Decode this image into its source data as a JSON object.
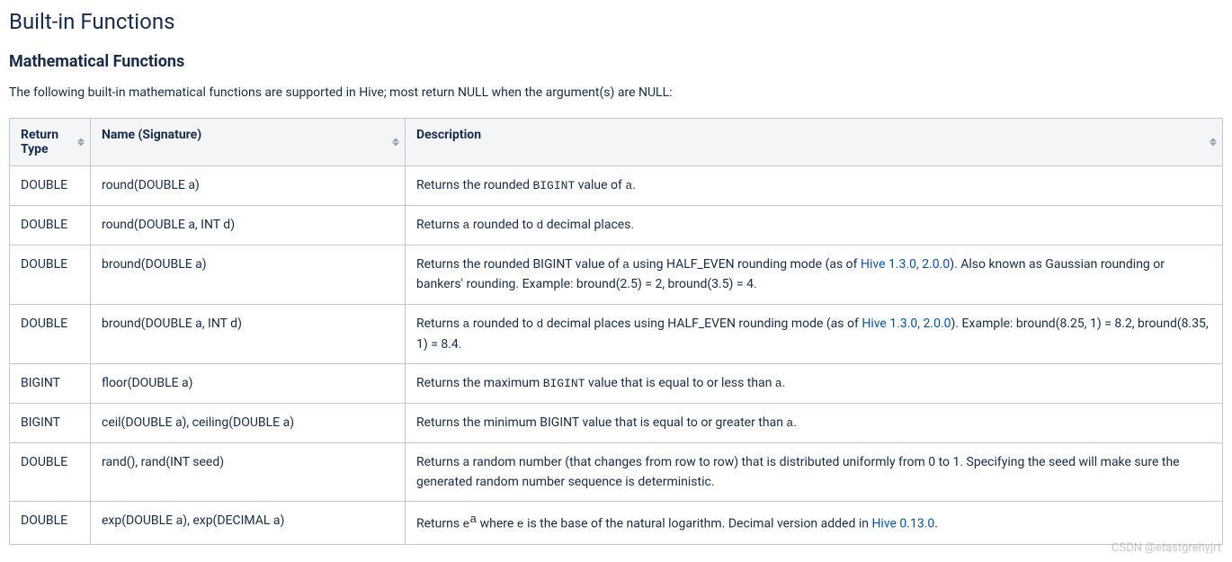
{
  "page_title": "Built-in Functions",
  "section_title": "Mathematical Functions",
  "intro_text": "The following built-in mathematical functions are supported in Hive; most return NULL when the argument(s) are NULL:",
  "columns": {
    "return_type": "Return Type",
    "name": "Name (Signature)",
    "description": "Description"
  },
  "rows": [
    {
      "return_type": "DOUBLE",
      "name": "round(DOUBLE a)",
      "desc_parts": [
        {
          "t": "text",
          "v": "Returns the rounded "
        },
        {
          "t": "code",
          "v": "BIGINT"
        },
        {
          "t": "text",
          "v": " value of "
        },
        {
          "t": "code",
          "v": "a"
        },
        {
          "t": "text",
          "v": "."
        }
      ]
    },
    {
      "return_type": "DOUBLE",
      "name": "round(DOUBLE a, INT d)",
      "desc_parts": [
        {
          "t": "text",
          "v": "Returns "
        },
        {
          "t": "code",
          "v": "a"
        },
        {
          "t": "text",
          "v": " rounded to "
        },
        {
          "t": "code",
          "v": "d"
        },
        {
          "t": "text",
          "v": " decimal places."
        }
      ]
    },
    {
      "return_type": "DOUBLE",
      "name": "bround(DOUBLE a)",
      "desc_parts": [
        {
          "t": "text",
          "v": "Returns the rounded BIGINT value of "
        },
        {
          "t": "code",
          "v": "a"
        },
        {
          "t": "text",
          "v": " using HALF_EVEN rounding mode (as of "
        },
        {
          "t": "link",
          "v": "Hive 1.3.0, 2.0.0"
        },
        {
          "t": "text",
          "v": "). Also known as Gaussian rounding or bankers' rounding. Example: bround(2.5) = 2, bround(3.5) = 4."
        }
      ]
    },
    {
      "return_type": "DOUBLE",
      "name": "bround(DOUBLE a, INT d)",
      "desc_parts": [
        {
          "t": "text",
          "v": "Returns "
        },
        {
          "t": "code",
          "v": "a"
        },
        {
          "t": "text",
          "v": " rounded to "
        },
        {
          "t": "code",
          "v": "d"
        },
        {
          "t": "text",
          "v": " decimal places using HALF_EVEN rounding mode (as of "
        },
        {
          "t": "link",
          "v": "Hive 1.3.0, 2.0.0"
        },
        {
          "t": "text",
          "v": "). Example: bround(8.25, 1) = 8.2, bround(8.35, 1) = 8.4."
        }
      ]
    },
    {
      "return_type": "BIGINT",
      "name": "floor(DOUBLE a)",
      "desc_parts": [
        {
          "t": "text",
          "v": "Returns the maximum "
        },
        {
          "t": "code",
          "v": "BIGINT"
        },
        {
          "t": "text",
          "v": " value that is equal to or less than "
        },
        {
          "t": "code",
          "v": "a"
        },
        {
          "t": "text",
          "v": "."
        }
      ]
    },
    {
      "return_type": "BIGINT",
      "name": "ceil(DOUBLE a), ceiling(DOUBLE a)",
      "desc_parts": [
        {
          "t": "text",
          "v": "Returns the minimum BIGINT value that is equal to or greater than "
        },
        {
          "t": "code",
          "v": "a"
        },
        {
          "t": "text",
          "v": "."
        }
      ]
    },
    {
      "return_type": "DOUBLE",
      "name": "rand(), rand(INT seed)",
      "desc_parts": [
        {
          "t": "text",
          "v": "Returns a random number (that changes from row to row) that is distributed uniformly from 0 to 1. Specifying the seed will make sure the generated random number sequence is deterministic."
        }
      ]
    },
    {
      "return_type": "DOUBLE",
      "name": "exp(DOUBLE a), exp(DECIMAL a)",
      "desc_parts": [
        {
          "t": "text",
          "v": "Returns "
        },
        {
          "t": "code",
          "v": "e"
        },
        {
          "t": "sup_code",
          "v": "a"
        },
        {
          "t": "text",
          "v": " where "
        },
        {
          "t": "code",
          "v": "e"
        },
        {
          "t": "text",
          "v": " is the base of the natural logarithm. Decimal version added in "
        },
        {
          "t": "link",
          "v": "Hive 0.13.0"
        },
        {
          "t": "text",
          "v": "."
        }
      ]
    }
  ],
  "watermark": "CSDN @etastgrehyjrt"
}
